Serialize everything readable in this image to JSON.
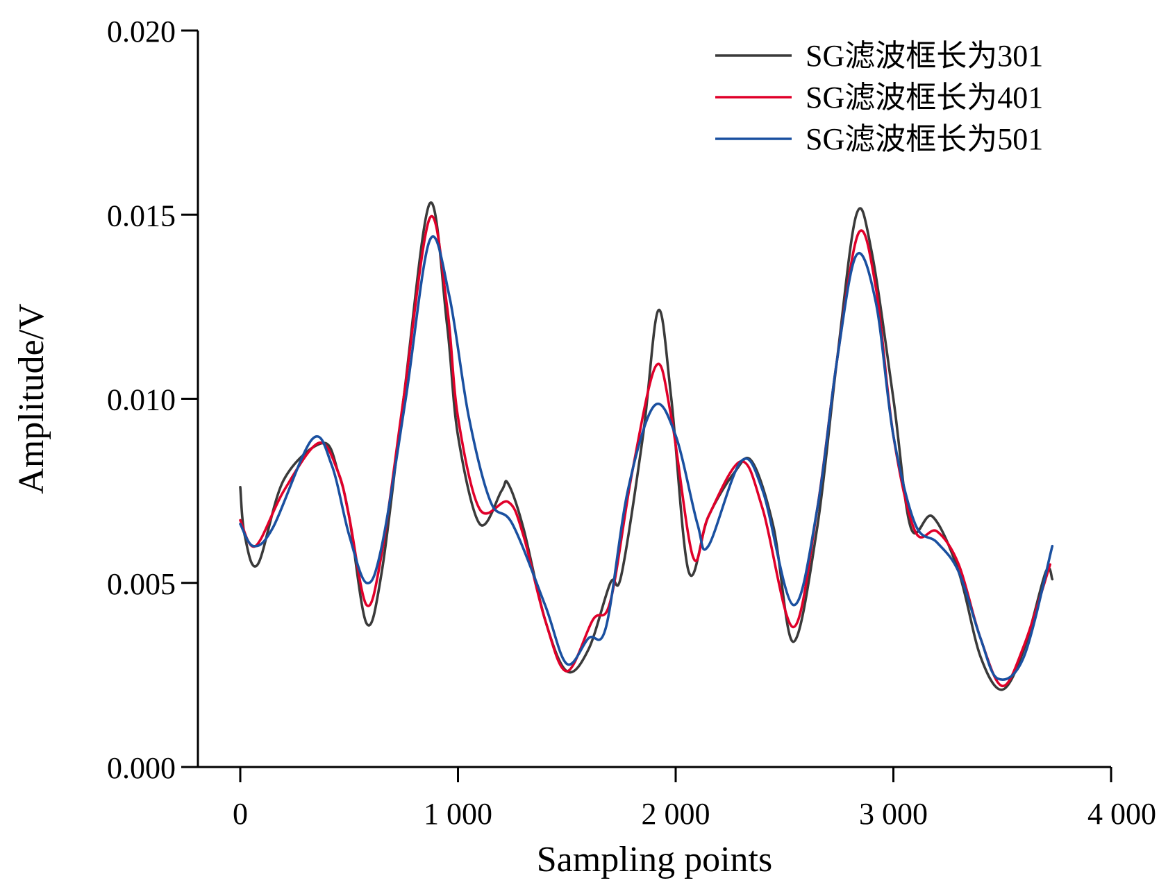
{
  "chart_data": {
    "type": "line",
    "title": "",
    "xlabel": "Sampling points",
    "ylabel": "Amplitude/V",
    "xlim": [
      -200,
      4000
    ],
    "ylim": [
      0,
      0.02
    ],
    "xticks": [
      0,
      1000,
      2000,
      3000,
      4000
    ],
    "xtick_labels": [
      "0",
      "1 000",
      "2 000",
      "3 000",
      "4 000"
    ],
    "yticks": [
      0,
      0.005,
      0.01,
      0.015,
      0.02
    ],
    "ytick_labels": [
      "0.000",
      "0.005",
      "0.010",
      "0.015",
      "0.020"
    ],
    "grid": false,
    "legend_position": "top-right",
    "series": [
      {
        "name": "SG滤波框长为301",
        "color": "#3a3a3a",
        "points": [
          [
            0,
            0.0076
          ],
          [
            20,
            0.0063
          ],
          [
            80,
            0.0055
          ],
          [
            200,
            0.0078
          ],
          [
            380,
            0.0088
          ],
          [
            450,
            0.008
          ],
          [
            500,
            0.0068
          ],
          [
            580,
            0.0039
          ],
          [
            650,
            0.0053
          ],
          [
            750,
            0.01
          ],
          [
            870,
            0.0153
          ],
          [
            950,
            0.012
          ],
          [
            1000,
            0.009
          ],
          [
            1100,
            0.0066
          ],
          [
            1200,
            0.0075
          ],
          [
            1230,
            0.0077
          ],
          [
            1300,
            0.0065
          ],
          [
            1400,
            0.004
          ],
          [
            1500,
            0.0026
          ],
          [
            1600,
            0.0032
          ],
          [
            1700,
            0.005
          ],
          [
            1750,
            0.0052
          ],
          [
            1850,
            0.009
          ],
          [
            1920,
            0.0124
          ],
          [
            1980,
            0.01
          ],
          [
            2060,
            0.0053
          ],
          [
            2150,
            0.0068
          ],
          [
            2270,
            0.008
          ],
          [
            2350,
            0.0083
          ],
          [
            2450,
            0.0065
          ],
          [
            2540,
            0.0034
          ],
          [
            2650,
            0.0065
          ],
          [
            2740,
            0.011
          ],
          [
            2830,
            0.015
          ],
          [
            2900,
            0.014
          ],
          [
            3000,
            0.01
          ],
          [
            3080,
            0.0065
          ],
          [
            3180,
            0.0068
          ],
          [
            3300,
            0.0053
          ],
          [
            3400,
            0.003
          ],
          [
            3500,
            0.0021
          ],
          [
            3600,
            0.0032
          ],
          [
            3700,
            0.0053
          ],
          [
            3730,
            0.0051
          ]
        ]
      },
      {
        "name": "SG滤波框长为401",
        "color": "#e0002a",
        "points": [
          [
            0,
            0.0067
          ],
          [
            70,
            0.006
          ],
          [
            200,
            0.0075
          ],
          [
            360,
            0.0088
          ],
          [
            450,
            0.008
          ],
          [
            500,
            0.0068
          ],
          [
            580,
            0.0044
          ],
          [
            650,
            0.0058
          ],
          [
            750,
            0.01
          ],
          [
            870,
            0.0149
          ],
          [
            950,
            0.0125
          ],
          [
            1000,
            0.0095
          ],
          [
            1100,
            0.007
          ],
          [
            1230,
            0.0072
          ],
          [
            1300,
            0.0063
          ],
          [
            1400,
            0.004
          ],
          [
            1500,
            0.0026
          ],
          [
            1620,
            0.004
          ],
          [
            1700,
            0.0045
          ],
          [
            1800,
            0.008
          ],
          [
            1910,
            0.0109
          ],
          [
            1980,
            0.0095
          ],
          [
            2080,
            0.0057
          ],
          [
            2150,
            0.0068
          ],
          [
            2300,
            0.0083
          ],
          [
            2400,
            0.007
          ],
          [
            2540,
            0.0038
          ],
          [
            2650,
            0.007
          ],
          [
            2740,
            0.011
          ],
          [
            2840,
            0.0145
          ],
          [
            2920,
            0.013
          ],
          [
            3000,
            0.009
          ],
          [
            3100,
            0.0064
          ],
          [
            3200,
            0.0064
          ],
          [
            3300,
            0.0055
          ],
          [
            3400,
            0.0035
          ],
          [
            3500,
            0.0022
          ],
          [
            3600,
            0.0033
          ],
          [
            3720,
            0.0055
          ]
        ]
      },
      {
        "name": "SG滤波框长为501",
        "color": "#1a50a0",
        "points": [
          [
            0,
            0.0066
          ],
          [
            60,
            0.006
          ],
          [
            150,
            0.0065
          ],
          [
            330,
            0.0089
          ],
          [
            420,
            0.0082
          ],
          [
            500,
            0.0063
          ],
          [
            580,
            0.005
          ],
          [
            650,
            0.006
          ],
          [
            760,
            0.01
          ],
          [
            870,
            0.0143
          ],
          [
            960,
            0.0128
          ],
          [
            1050,
            0.0095
          ],
          [
            1150,
            0.0072
          ],
          [
            1250,
            0.0066
          ],
          [
            1400,
            0.0044
          ],
          [
            1500,
            0.0028
          ],
          [
            1600,
            0.0035
          ],
          [
            1680,
            0.0038
          ],
          [
            1780,
            0.0075
          ],
          [
            1900,
            0.0098
          ],
          [
            2000,
            0.009
          ],
          [
            2100,
            0.0066
          ],
          [
            2150,
            0.006
          ],
          [
            2300,
            0.0083
          ],
          [
            2400,
            0.0075
          ],
          [
            2540,
            0.0044
          ],
          [
            2650,
            0.007
          ],
          [
            2740,
            0.011
          ],
          [
            2830,
            0.0139
          ],
          [
            2920,
            0.0126
          ],
          [
            3000,
            0.009
          ],
          [
            3100,
            0.0066
          ],
          [
            3200,
            0.0061
          ],
          [
            3300,
            0.0053
          ],
          [
            3400,
            0.0035
          ],
          [
            3480,
            0.0024
          ],
          [
            3600,
            0.003
          ],
          [
            3730,
            0.006
          ]
        ]
      }
    ]
  }
}
